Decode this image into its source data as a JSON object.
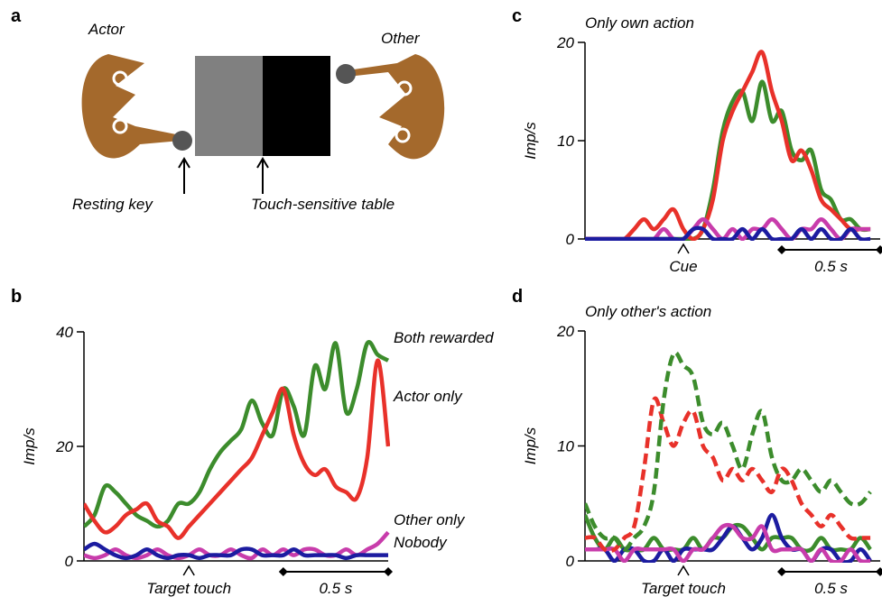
{
  "diagram": {
    "label": "a",
    "actor": "Actor",
    "other": "Other",
    "resting_key": "Resting key",
    "table": "Touch-sensitive table"
  },
  "chart_data": [
    {
      "type": "line",
      "label": "b",
      "ylabel": "Imp/s",
      "xlim": [
        0,
        1.45
      ],
      "ylim": [
        0,
        40
      ],
      "yticks": [
        0,
        20,
        40
      ],
      "x": [
        0,
        0.05,
        0.1,
        0.15,
        0.2,
        0.25,
        0.3,
        0.35,
        0.4,
        0.45,
        0.5,
        0.55,
        0.6,
        0.65,
        0.7,
        0.75,
        0.8,
        0.85,
        0.9,
        0.95,
        1.0,
        1.05,
        1.1,
        1.15,
        1.2,
        1.25,
        1.3,
        1.35,
        1.4,
        1.45
      ],
      "event": {
        "x": 0.5,
        "label": "Target touch"
      },
      "scale_bar": {
        "length": 0.5,
        "label": "0.5 s"
      },
      "legend": true,
      "series": [
        {
          "name": "Both rewarded",
          "color": "#3c8c2c",
          "text_color": "#1a7a50",
          "values": [
            6,
            8,
            13,
            12,
            10,
            8,
            7,
            6,
            7,
            10,
            10,
            12,
            16,
            19,
            21,
            23,
            28,
            24,
            22,
            30,
            27,
            22,
            34,
            30,
            38,
            26,
            30,
            38,
            36,
            35
          ]
        },
        {
          "name": "Actor only",
          "color": "#e8312a",
          "text_color": "#e8312a",
          "values": [
            10,
            7,
            5,
            6,
            8,
            9,
            10,
            7,
            6,
            4,
            6,
            8,
            10,
            12,
            14,
            16,
            18,
            22,
            26,
            30,
            22,
            17,
            15,
            16,
            13,
            12,
            11,
            18,
            35,
            20
          ]
        },
        {
          "name": "Other only",
          "color": "#c83cab",
          "text_color": "#c83cab",
          "values": [
            1,
            0.5,
            1,
            2,
            1,
            0.5,
            1,
            2,
            1,
            0.5,
            1,
            2,
            1,
            1,
            2,
            1,
            0.5,
            2,
            1,
            2,
            1,
            2,
            2,
            1,
            1,
            2,
            1,
            2,
            3,
            5
          ]
        },
        {
          "name": "Nobody",
          "color": "#1c1ca0",
          "text_color": "#1c1ca0",
          "values": [
            2,
            3,
            2,
            1,
            0.5,
            1,
            2,
            1,
            0.5,
            1,
            1,
            0.5,
            1,
            1,
            1,
            2,
            2,
            1,
            1,
            1,
            2,
            1,
            1,
            1,
            1,
            0.5,
            1,
            1,
            1,
            1
          ]
        }
      ]
    },
    {
      "type": "line",
      "label": "c",
      "title": "Only own action",
      "ylabel": "Imp/s",
      "xlim": [
        0,
        1.5
      ],
      "ylim": [
        0,
        20
      ],
      "yticks": [
        0,
        10,
        20
      ],
      "x": [
        0,
        0.05,
        0.1,
        0.15,
        0.2,
        0.25,
        0.3,
        0.35,
        0.4,
        0.45,
        0.5,
        0.55,
        0.6,
        0.65,
        0.7,
        0.75,
        0.8,
        0.85,
        0.9,
        0.95,
        1.0,
        1.05,
        1.1,
        1.15,
        1.2,
        1.25,
        1.3,
        1.35,
        1.4,
        1.45
      ],
      "event": {
        "x": 0.5,
        "label": "Cue"
      },
      "scale_bar": {
        "length": 0.5,
        "label": "0.5 s"
      },
      "series": [
        {
          "color": "#3c8c2c",
          "values": [
            0,
            0,
            0,
            0,
            0,
            0,
            0,
            0,
            0,
            0,
            0,
            0,
            1,
            5,
            11,
            14,
            15,
            12,
            16,
            12,
            13,
            9,
            8,
            9,
            5,
            4,
            2,
            2,
            1,
            1
          ]
        },
        {
          "color": "#e8312a",
          "values": [
            0,
            0,
            0,
            0,
            0,
            1,
            2,
            1,
            2,
            3,
            1,
            0,
            1,
            4,
            10,
            13,
            15,
            17,
            19,
            15,
            12,
            8,
            9,
            7,
            4,
            3,
            2,
            1,
            1,
            1
          ]
        },
        {
          "color": "#c83cab",
          "values": [
            0,
            0,
            0,
            0,
            0,
            0,
            0,
            0,
            1,
            0,
            0,
            1,
            2,
            1,
            0,
            1,
            0,
            1,
            1,
            2,
            1,
            0,
            1,
            1,
            2,
            1,
            0,
            1,
            1,
            1
          ]
        },
        {
          "color": "#1c1ca0",
          "values": [
            0,
            0,
            0,
            0,
            0,
            0,
            0,
            0,
            0,
            0,
            0,
            1,
            1,
            0,
            0,
            0,
            1,
            0,
            1,
            0,
            0,
            0,
            1,
            0,
            1,
            0,
            0,
            1,
            0,
            0
          ]
        }
      ]
    },
    {
      "type": "line",
      "label": "d",
      "title": "Only other's action",
      "ylabel": "Imp/s",
      "xlim": [
        0,
        1.5
      ],
      "ylim": [
        0,
        20
      ],
      "yticks": [
        0,
        10,
        20
      ],
      "x": [
        0,
        0.05,
        0.1,
        0.15,
        0.2,
        0.25,
        0.3,
        0.35,
        0.4,
        0.45,
        0.5,
        0.55,
        0.6,
        0.65,
        0.7,
        0.75,
        0.8,
        0.85,
        0.9,
        0.95,
        1.0,
        1.05,
        1.1,
        1.15,
        1.2,
        1.25,
        1.3,
        1.35,
        1.4,
        1.45
      ],
      "event": {
        "x": 0.5,
        "label": "Target touch"
      },
      "scale_bar": {
        "length": 0.5,
        "label": "0.5 s"
      },
      "series": [
        {
          "color": "#3c8c2c",
          "values": [
            4,
            2,
            1,
            2,
            1,
            1,
            1,
            2,
            1,
            1,
            1,
            2,
            1,
            2,
            2,
            3,
            3,
            2,
            1,
            2,
            2,
            2,
            1,
            1,
            2,
            1,
            1,
            1,
            2,
            1
          ]
        },
        {
          "color": "#1c1ca0",
          "values": [
            1,
            1,
            1,
            0,
            1,
            1,
            0,
            0,
            1,
            0,
            1,
            1,
            1,
            1,
            2,
            3,
            2,
            1,
            2,
            4,
            2,
            1,
            1,
            0,
            1,
            1,
            0,
            0,
            1,
            0
          ]
        },
        {
          "color": "#c83cab",
          "values": [
            1,
            1,
            1,
            1,
            0,
            1,
            1,
            1,
            1,
            1,
            0,
            1,
            1,
            2,
            3,
            3,
            2,
            2,
            3,
            1,
            1,
            1,
            1,
            0,
            1,
            0,
            0,
            1,
            0,
            0
          ]
        },
        {
          "color": "#e8312a",
          "dashed": true,
          "values": [
            2,
            2,
            1,
            1,
            2,
            3,
            8,
            14,
            12,
            10,
            12,
            13,
            10,
            9,
            7,
            8,
            7,
            8,
            7,
            6,
            8,
            7,
            5,
            4,
            3,
            4,
            3,
            2,
            2,
            2
          ]
        },
        {
          "color": "#3c8c2c",
          "dashed": true,
          "values": [
            5,
            3,
            2,
            2,
            1,
            2,
            3,
            6,
            14,
            18,
            17,
            16,
            12,
            11,
            12,
            10,
            8,
            11,
            13,
            9,
            7,
            7,
            8,
            7,
            6,
            7,
            6,
            5,
            5,
            6
          ]
        }
      ]
    }
  ]
}
